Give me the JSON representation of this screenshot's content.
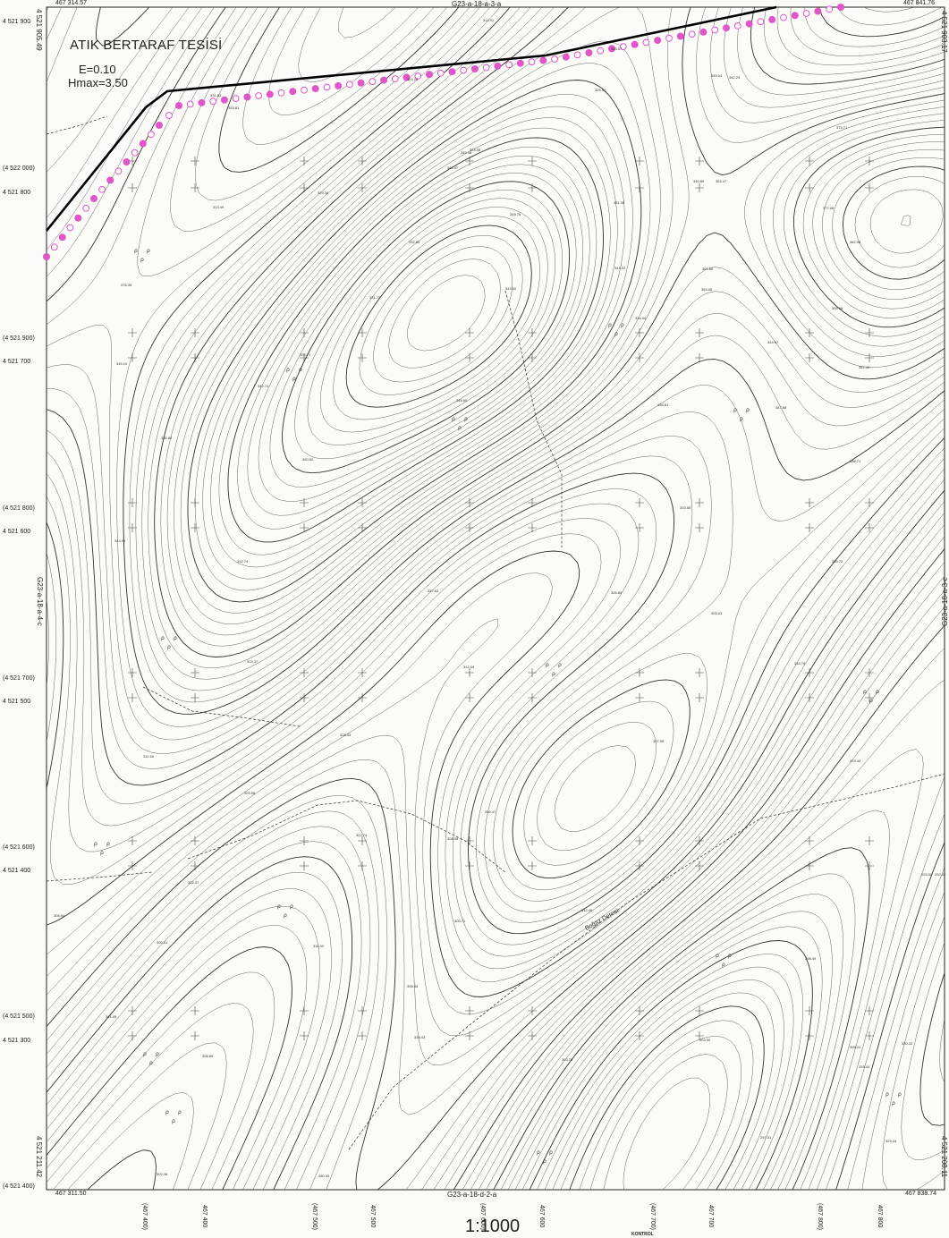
{
  "title": "ATIK BERTARAF TESİSİ",
  "parameters": {
    "e": "E=0.10",
    "hmax": "Hmax=3.50"
  },
  "scale": "1:1000",
  "sheets": {
    "top": "G23-a-18-a-3-a",
    "bottom": "G23-a-18-d-2-a",
    "left": "G23-a-18-a-4-c",
    "right": "G23-a-18-a-3-c"
  },
  "corners": {
    "top_left": "467 314.57",
    "top_right": "467 841.76",
    "bottom_left": "467 311.50",
    "bottom_right": "467 838.74",
    "left_top_vertical": "4 521 905.49",
    "left_bottom_vertical": "4 521 211.42",
    "right_top_vertical": "4 521 903.17",
    "right_bottom_vertical": "4 521 208.11"
  },
  "y_coordinates": [
    "4 521 900",
    "(4 522 000)",
    "4 521 800",
    "(4 521 900)",
    "4 521 700",
    "(4 521 800)",
    "4 521 600",
    "(4 521 700)",
    "4 521 500",
    "(4 521 600)",
    "4 521 400",
    "(4 521 500)",
    "4 521 300",
    "(4 521 400)"
  ],
  "x_coordinates": [
    "(467 400)",
    "467 400",
    "(467 500)",
    "467 500",
    "(467 600)",
    "467 600",
    "(467 700)",
    "467 700",
    "(467 800)",
    "467 800"
  ],
  "stream_label": "Boğaz Deresi",
  "footer_label": "KONTROL",
  "spot_heights": [
    "324.28",
    "314.91",
    "331.83",
    "343.57",
    "349.04",
    "328.51",
    "324.08",
    "353.81",
    "342.29",
    "362.97",
    "375.71",
    "345.38",
    "340.89",
    "363.47",
    "377.08",
    "313.49",
    "329.34",
    "345.78",
    "351.38",
    "332.84",
    "344.02",
    "361.80",
    "362.98",
    "378.35",
    "331.72",
    "343.50",
    "334.44",
    "364.06",
    "355.98",
    "345.10",
    "323.71",
    "342.74",
    "344.67",
    "336.89",
    "358.81",
    "352.49",
    "360.92",
    "367.88",
    "338.71",
    "344.95",
    "346.55",
    "333.85",
    "339.72",
    "332.74",
    "347.62",
    "328.85",
    "305.43",
    "324.37",
    "312.09",
    "318.79",
    "328.44",
    "307.59",
    "311.65",
    "309.98",
    "306.47",
    "322.74",
    "319.44",
    "302.37",
    "308.94",
    "306.71",
    "312.46",
    "311.50",
    "300.41",
    "298.49",
    "301.49",
    "308.89",
    "338.43",
    "303.70",
    "303.55",
    "305.01",
    "320.33",
    "280.33",
    "297.31",
    "302.38",
    "329.44",
    "333.44",
    "293.50",
    "306.45",
    "292.42",
    "308.08"
  ],
  "colors": {
    "contour": "#555555",
    "index_contour": "#333333",
    "boundary": "#000000",
    "pink_marker": "#e055c8",
    "background": "#fafaf7"
  }
}
